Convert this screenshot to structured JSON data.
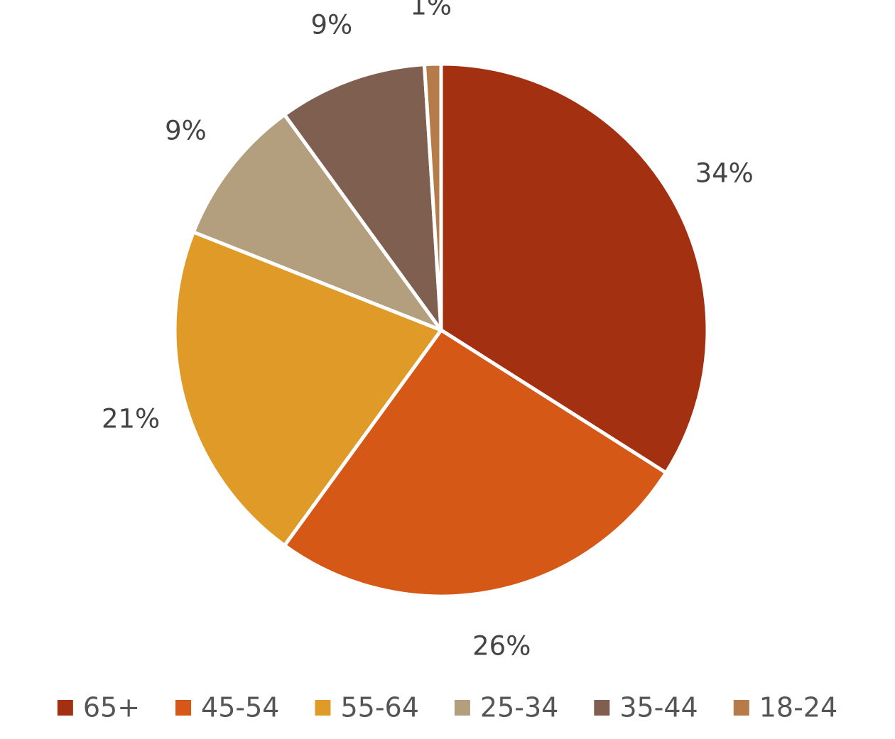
{
  "chart_data": {
    "type": "pie",
    "categories": [
      "65+",
      "45-54",
      "55-64",
      "25-34",
      "35-44",
      "18-24"
    ],
    "values": [
      34,
      26,
      21,
      9,
      9,
      1
    ],
    "value_labels": [
      "34%",
      "26%",
      "21%",
      "9%",
      "9%",
      "1%"
    ],
    "colors": [
      "#a33010",
      "#d55817",
      "#e09a27",
      "#b39e7e",
      "#7f5f50",
      "#b57b48"
    ],
    "legend": "bottom"
  }
}
